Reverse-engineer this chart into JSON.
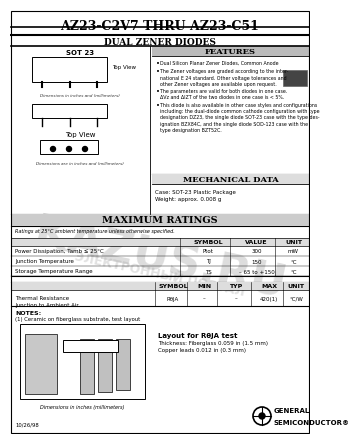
{
  "title": "AZ23-C2V7 THRU AZ23-C51",
  "subtitle": "DUAL ZENER DIODES",
  "bg_color": "#ffffff",
  "features_header": "FEATURES",
  "feature1": "Dual Silicon Planar Zener Diodes, Common Anode",
  "feature2": "The Zener voltages are graded according to the inter-\nnational E 24 standard. Other voltage tolerances and\nother Zener voltages are available upon request.",
  "feature3": "The parameters are valid for both diodes in one case.\nΔVz and ΔIZT of the two diodes in one case is < 5%.",
  "feature4": "This diode is also available in other case styles and configurations\nincluding: the dual-diode common cathode configuration with type\ndesignation DZ23, the single diode SOT-23 case with the type des-\nignation BZX84C, and the single diode SOD-123 case with the\ntype designation BZT52C.",
  "mech_header": "MECHANICAL DATA",
  "mech_case": "Case: SOT-23 Plastic Package",
  "mech_weight": "Weight: approx. 0.008 g",
  "max_ratings_header": "MAXIMUM RATINGS",
  "max_ratings_sub": "Ratings at 25°C ambient temperature unless otherwise specified.",
  "col1_header": "SYMBOL",
  "col2_header": "VALUE",
  "col3_header": "UNIT",
  "row1_label": "Power Dissipation, Tamb ≤ 25°C",
  "row1_sym": "Ptot",
  "row1_val": "300",
  "row1_unit": "mW",
  "row2_label": "Junction Temperature",
  "row2_sym": "TJ",
  "row2_val": "150",
  "row2_unit": "°C",
  "row3_label": "Storage Temperature Range",
  "row3_sym": "TS",
  "row3_val": "– 65 to +150",
  "row3_unit": "°C",
  "t2c1": "SYMBOL",
  "t2c2": "MIN",
  "t2c3": "TYP",
  "t2c4": "MAX",
  "t2c5": "UNIT",
  "t2r1_label": "Thermal Resistance\nJunction to Ambient Air",
  "t2r1_sym": "RθJA",
  "t2r1_min": "–",
  "t2r1_typ": "–",
  "t2r1_max": "420(1)",
  "t2r1_unit": "°C/W",
  "notes_hdr": "NOTES:",
  "note1": "(1) Ceramic on fiberglass substrate, test layout",
  "layout_hdr": "Layout for RθJA test",
  "layout_l1": "Thickness: Fiberglass 0.059 in (1.5 mm)",
  "layout_l2": "Copper leads 0.012 in (0.3 mm)",
  "dim_note": "Dimensions in inches (millimeters)",
  "footer_date": "10/26/98",
  "company_l1": "GENERAL",
  "company_l2": "SEMICONDUCTOR",
  "pkg_label": "SOT 23",
  "top_view": "Top View",
  "top_view2": "Top View",
  "dim_inches": "Dimensions in inches and (millimeters)",
  "dim_inches2": "Dimensions are in inches and (millimeters)",
  "watermark": "KAZUS.RU",
  "watermark2": "ЭЛЕКТРОННЫЙ ПОРТАЛ"
}
